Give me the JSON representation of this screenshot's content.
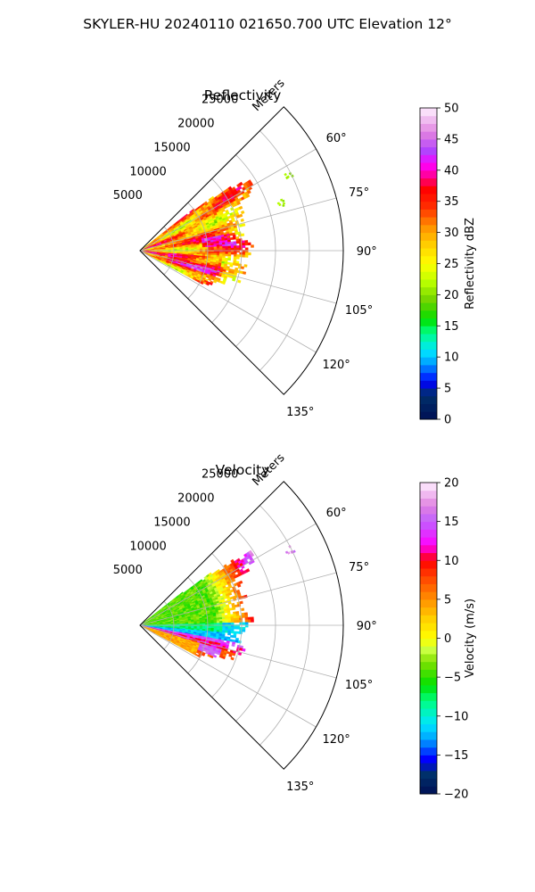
{
  "figure": {
    "suptitle": "SKYLER-HU  20240110  021650.700 UTC Elevation 12°"
  },
  "chart_data": [
    {
      "type": "heatmap",
      "projection": "polar-sector",
      "title": "Reflectivity",
      "range_label": "Meters",
      "azimuth_range_deg": [
        45,
        135
      ],
      "range_max_m": 30000,
      "range_ticks": [
        5000,
        10000,
        15000,
        20000,
        25000
      ],
      "range_tick_labels": [
        "5000",
        "10000",
        "15000",
        "20000",
        "25000"
      ],
      "azimuth_ticks_deg": [
        60,
        75,
        90,
        105,
        120,
        135
      ],
      "azimuth_tick_labels": [
        "60°",
        "75°",
        "90°",
        "105°",
        "120°",
        "135°"
      ],
      "grid": true,
      "field_extent": {
        "azimuth_deg": [
          52,
          118
        ],
        "range_m_by_azimuth": [
          [
            52,
            7500
          ],
          [
            56,
            19000
          ],
          [
            58,
            20000
          ],
          [
            62,
            17500
          ],
          [
            66,
            16000
          ],
          [
            72,
            15500
          ],
          [
            80,
            15500
          ],
          [
            88,
            16000
          ],
          [
            96,
            15000
          ],
          [
            104,
            15500
          ],
          [
            108,
            14500
          ],
          [
            114,
            12000
          ],
          [
            118,
            10000
          ]
        ],
        "outlier_cells": [
          {
            "azimuth_deg": 63,
            "range_m": 24500
          },
          {
            "azimuth_deg": 71,
            "range_m": 22000
          }
        ]
      },
      "dominant_values_dbz": {
        "near_field": 30,
        "core_bands": 36,
        "max": 45,
        "edge": 20
      },
      "colorbar": {
        "label": "Reflectivity dBZ",
        "range": [
          0,
          50
        ],
        "ticks": [
          0,
          5,
          10,
          15,
          20,
          25,
          30,
          35,
          40,
          45,
          50
        ],
        "tick_labels": [
          "0",
          "5",
          "10",
          "15",
          "20",
          "25",
          "30",
          "35",
          "40",
          "45",
          "50"
        ],
        "stops": [
          [
            0,
            "#001055"
          ],
          [
            4,
            "#00306b"
          ],
          [
            6,
            "#0000ff"
          ],
          [
            9,
            "#00a0ff"
          ],
          [
            11,
            "#00e6ff"
          ],
          [
            14,
            "#00ff80"
          ],
          [
            16,
            "#00e000"
          ],
          [
            19,
            "#6ed000"
          ],
          [
            22,
            "#b8ff00"
          ],
          [
            25,
            "#ffff00"
          ],
          [
            28,
            "#ffd000"
          ],
          [
            31,
            "#ff9000"
          ],
          [
            34,
            "#ff3000"
          ],
          [
            37,
            "#ff0000"
          ],
          [
            39,
            "#ff0090"
          ],
          [
            41,
            "#ff00ff"
          ],
          [
            43,
            "#b040ff"
          ],
          [
            46,
            "#e080e0"
          ],
          [
            50,
            "#fff0ff"
          ]
        ]
      }
    },
    {
      "type": "heatmap",
      "projection": "polar-sector",
      "title": "Velocity",
      "range_label": "Meters",
      "azimuth_range_deg": [
        45,
        135
      ],
      "range_max_m": 30000,
      "range_ticks": [
        5000,
        10000,
        15000,
        20000,
        25000
      ],
      "range_tick_labels": [
        "5000",
        "10000",
        "15000",
        "20000",
        "25000"
      ],
      "azimuth_ticks_deg": [
        60,
        75,
        90,
        105,
        120,
        135
      ],
      "azimuth_tick_labels": [
        "60°",
        "75°",
        "90°",
        "105°",
        "120°",
        "135°"
      ],
      "grid": true,
      "field_extent": {
        "azimuth_deg": [
          52,
          118
        ],
        "range_m_by_azimuth": [
          [
            52,
            7500
          ],
          [
            56,
            19000
          ],
          [
            58,
            20000
          ],
          [
            62,
            17500
          ],
          [
            66,
            16000
          ],
          [
            72,
            15500
          ],
          [
            80,
            15500
          ],
          [
            88,
            16000
          ],
          [
            96,
            15000
          ],
          [
            104,
            15500
          ],
          [
            108,
            14500
          ],
          [
            114,
            12000
          ],
          [
            118,
            10000
          ]
        ],
        "outlier_cells": [
          {
            "azimuth_deg": 63,
            "range_m": 24500
          }
        ]
      },
      "dominant_values_ms": {
        "north_sector": -3,
        "edge_north": 10,
        "center_band": -12,
        "south_band": 10,
        "south_sector": 3
      },
      "colorbar": {
        "label": "Velocity (m/s)",
        "range": [
          -20,
          20
        ],
        "ticks": [
          -20,
          -15,
          -10,
          -5,
          0,
          5,
          10,
          15,
          20
        ],
        "tick_labels": [
          "−20",
          "−15",
          "−10",
          "−5",
          "0",
          "5",
          "10",
          "15",
          "20"
        ],
        "stops": [
          [
            -20,
            "#001055"
          ],
          [
            -17.5,
            "#00306b"
          ],
          [
            -15.5,
            "#0000ff"
          ],
          [
            -13,
            "#00a0ff"
          ],
          [
            -11,
            "#00e6ff"
          ],
          [
            -8,
            "#00ff80"
          ],
          [
            -6,
            "#00e000"
          ],
          [
            -3,
            "#80e000"
          ],
          [
            -1.5,
            "#c8ff40"
          ],
          [
            0,
            "#ffff00"
          ],
          [
            2.5,
            "#ffd000"
          ],
          [
            5,
            "#ff9000"
          ],
          [
            8,
            "#ff4000"
          ],
          [
            10,
            "#ff0000"
          ],
          [
            12,
            "#ff00ff"
          ],
          [
            15,
            "#c060ff"
          ],
          [
            17,
            "#e080e0"
          ],
          [
            20,
            "#fff0ff"
          ]
        ]
      }
    }
  ]
}
